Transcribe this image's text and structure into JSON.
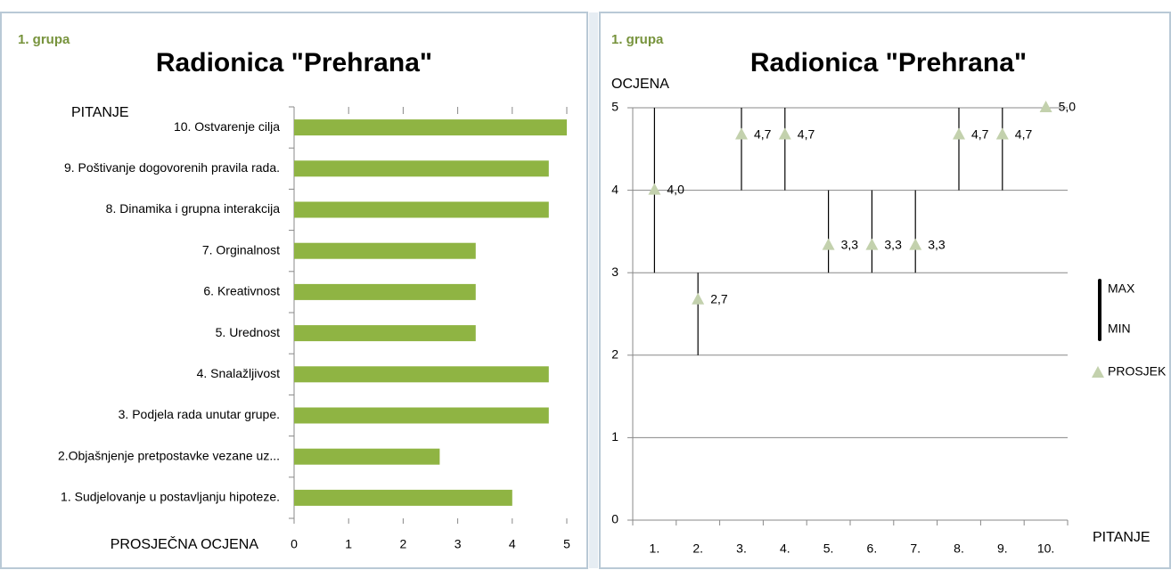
{
  "chart_data": [
    {
      "type": "hbar",
      "subtitle": "1. grupa",
      "title": "Radionica \"Prehrana\"",
      "ylabel": "PITANJE",
      "xlabel": "PROSJEČNA OCJENA",
      "categories": [
        "1. Sudjelovanje u postavljanju  hipoteze.",
        "2.Objašnjenje pretpostavke vezane uz...",
        "3. Podjela rada unutar grupe.",
        "4. Snalažljivost",
        "5. Urednost",
        "6. Kreativnost",
        "7. Orginalnost",
        "8. Dinamika  i grupna interakcija",
        "9. Poštivanje  dogovorenih pravila rada.",
        "10. Ostvarenje cilja"
      ],
      "values": [
        4.0,
        2.67,
        4.67,
        4.67,
        3.33,
        3.33,
        3.33,
        4.67,
        4.67,
        5.0
      ],
      "color": "#8fb443",
      "xlim": [
        0,
        5
      ],
      "xticks": [
        0,
        1,
        2,
        3,
        4,
        5
      ],
      "grid": false
    },
    {
      "type": "stock",
      "subtitle": "1. grupa",
      "title": "Radionica \"Prehrana\"",
      "ylabel": "OCJENA",
      "xlabel": "PITANJE",
      "categories": [
        "1.",
        "2.",
        "3.",
        "4.",
        "5.",
        "6.",
        "7.",
        "8.",
        "9.",
        "10."
      ],
      "series": [
        {
          "name": "MAX",
          "color": "#000000",
          "values": [
            5,
            3,
            5,
            5,
            4,
            4,
            4,
            5,
            5,
            5
          ]
        },
        {
          "name": "MIN",
          "color": "#000000",
          "values": [
            3,
            2,
            4,
            4,
            3,
            3,
            3,
            4,
            4,
            5
          ]
        },
        {
          "name": "PROSJEK",
          "color": "#c3d1ad",
          "values": [
            4.0,
            2.67,
            4.67,
            4.67,
            3.33,
            3.33,
            3.33,
            4.67,
            4.67,
            5.0
          ],
          "value_labels": [
            "4,0",
            "2,7",
            "4,7",
            "4,7",
            "3,3",
            "3,3",
            "3,3",
            "4,7",
            "4,7",
            "5,0"
          ]
        }
      ],
      "ylim": [
        0,
        5
      ],
      "yticks": [
        0,
        1,
        2,
        3,
        4,
        5
      ],
      "grid": true
    }
  ]
}
